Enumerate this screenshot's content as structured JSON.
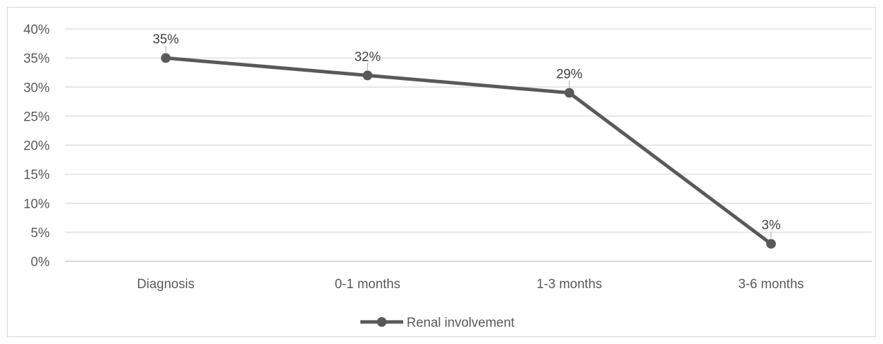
{
  "chart_data": {
    "type": "line",
    "categories": [
      "Diagnosis",
      "0-1 months",
      "1-3 months",
      "3-6 months"
    ],
    "series": [
      {
        "name": "Renal involvement",
        "values": [
          35,
          32,
          29,
          3
        ],
        "color": "#595959",
        "data_labels": [
          "35%",
          "32%",
          "29%",
          "3%"
        ]
      }
    ],
    "ylim": [
      0,
      40
    ],
    "y_ticks": [
      0,
      5,
      10,
      15,
      20,
      25,
      30,
      35,
      40
    ],
    "y_tick_labels": [
      "0%",
      "5%",
      "10%",
      "15%",
      "20%",
      "25%",
      "30%",
      "35%",
      "40%"
    ],
    "grid": true,
    "legend": "bottom",
    "colors": {
      "gridline": "#d9d9d9",
      "axis": "#bfbfbf",
      "text": "#595959"
    }
  }
}
